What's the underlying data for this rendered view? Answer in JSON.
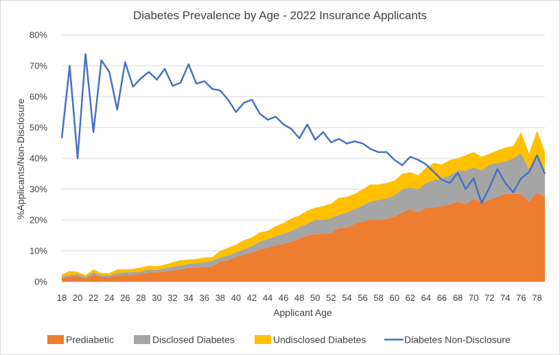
{
  "chart_data": {
    "type": "area",
    "title": "Diabetes Prevalence by Age - 2022 Insurance Applicants",
    "xlabel": "Applicant Age",
    "ylabel": "%Applicants/Non-Disclosure",
    "ylim": [
      0,
      80
    ],
    "y_ticks": [
      "0%",
      "10%",
      "20%",
      "30%",
      "40%",
      "50%",
      "60%",
      "70%",
      "80%"
    ],
    "x_ticks": [
      "18",
      "20",
      "22",
      "24",
      "26",
      "28",
      "30",
      "32",
      "34",
      "36",
      "38",
      "40",
      "42",
      "44",
      "46",
      "48",
      "50",
      "52",
      "54",
      "56",
      "58",
      "60",
      "62",
      "64",
      "66",
      "68",
      "70",
      "72",
      "74",
      "76",
      "78"
    ],
    "x": [
      18,
      19,
      20,
      21,
      22,
      23,
      24,
      25,
      26,
      27,
      28,
      29,
      30,
      31,
      32,
      33,
      34,
      35,
      36,
      37,
      38,
      39,
      40,
      41,
      42,
      43,
      44,
      45,
      46,
      47,
      48,
      49,
      50,
      51,
      52,
      53,
      54,
      55,
      56,
      57,
      58,
      59,
      60,
      61,
      62,
      63,
      64,
      65,
      66,
      67,
      68,
      69,
      70,
      71,
      72,
      73,
      74,
      75,
      76,
      77,
      78,
      79
    ],
    "grid": "horizontal",
    "legend_position": "bottom",
    "series": [
      {
        "name": "Prediabetic",
        "kind": "stacked-area",
        "color": "#ED7D31",
        "values": [
          1.3,
          1.6,
          1.8,
          1.0,
          2.2,
          1.6,
          1.5,
          2.0,
          2.2,
          2.2,
          2.6,
          3.0,
          3.0,
          3.3,
          3.6,
          4.0,
          4.5,
          4.5,
          4.7,
          5.0,
          6.5,
          7.0,
          8.0,
          8.8,
          9.5,
          10.5,
          11.0,
          11.8,
          12.2,
          13.0,
          14.0,
          15.0,
          15.5,
          15.5,
          15.8,
          17.5,
          17.5,
          18.8,
          19.5,
          20.0,
          20.0,
          20.5,
          21.0,
          22.5,
          23.5,
          22.5,
          24.0,
          24.0,
          24.5,
          25.0,
          26.0,
          25.0,
          27.0,
          25.5,
          26.5,
          27.5,
          28.5,
          28.5,
          28.5,
          26.0,
          29.0,
          27.5
        ]
      },
      {
        "name": "Disclosed Diabetes",
        "kind": "stacked-area",
        "color": "#A5A5A5",
        "values": [
          0.3,
          0.6,
          0.7,
          0.5,
          0.8,
          0.5,
          0.5,
          0.8,
          0.8,
          0.9,
          0.8,
          0.9,
          0.8,
          1.0,
          1.2,
          1.2,
          1.3,
          1.5,
          1.6,
          1.8,
          1.3,
          1.5,
          1.5,
          1.7,
          2.0,
          2.5,
          2.8,
          3.0,
          3.3,
          3.5,
          3.7,
          3.8,
          4.5,
          4.5,
          4.8,
          4.2,
          5.0,
          4.7,
          5.2,
          6.0,
          6.5,
          6.5,
          7.0,
          7.5,
          7.0,
          7.5,
          8.0,
          9.0,
          9.0,
          9.5,
          10.0,
          11.0,
          10.0,
          10.5,
          11.5,
          11.0,
          10.5,
          11.5,
          13.0,
          10.5,
          11.5,
          8.5
        ]
      },
      {
        "name": "Undisclosed Diabetes",
        "kind": "stacked-area",
        "color": "#FFC000",
        "values": [
          0.7,
          1.3,
          0.7,
          0.6,
          1.0,
          0.7,
          0.8,
          1.2,
          1.0,
          1.0,
          1.2,
          1.3,
          1.2,
          1.2,
          1.5,
          1.8,
          1.4,
          1.4,
          1.5,
          1.2,
          2.2,
          2.5,
          2.5,
          3.0,
          2.8,
          3.0,
          2.7,
          3.2,
          3.5,
          4.0,
          3.8,
          4.2,
          4.0,
          4.5,
          4.7,
          5.5,
          5.0,
          5.0,
          5.3,
          5.5,
          5.0,
          5.0,
          4.8,
          5.0,
          5.0,
          4.5,
          5.0,
          5.5,
          4.5,
          5.0,
          4.0,
          5.0,
          5.0,
          4.5,
          3.5,
          4.0,
          4.5,
          4.0,
          7.0,
          5.0,
          8.5,
          6.0
        ]
      },
      {
        "name": "Diabetes Non-Disclosure",
        "kind": "line",
        "color": "#4472C4",
        "values": [
          46.5,
          70.0,
          40.0,
          73.8,
          48.5,
          71.8,
          68.0,
          55.8,
          71.2,
          63.2,
          66.0,
          68.0,
          65.5,
          69.0,
          63.5,
          64.5,
          70.5,
          64.2,
          65.0,
          62.5,
          62.0,
          59.0,
          55.0,
          58.0,
          59.0,
          54.5,
          52.5,
          53.5,
          51.0,
          49.5,
          46.5,
          51.0,
          46.0,
          48.5,
          45.2,
          46.3,
          44.8,
          45.5,
          44.8,
          43.0,
          42.0,
          42.0,
          39.5,
          37.8,
          40.5,
          39.5,
          38.0,
          35.5,
          33.0,
          32.0,
          35.3,
          30.0,
          33.5,
          25.5,
          30.5,
          36.5,
          32.0,
          29.0,
          33.5,
          35.5,
          41.0,
          35.0
        ]
      }
    ],
    "legend": [
      {
        "label": "Prediabetic",
        "symbol": "square",
        "color": "#ED7D31"
      },
      {
        "label": "Disclosed Diabetes",
        "symbol": "square",
        "color": "#A5A5A5"
      },
      {
        "label": "Undisclosed Diabetes",
        "symbol": "square",
        "color": "#FFC000"
      },
      {
        "label": "Diabetes Non-Disclosure",
        "symbol": "line",
        "color": "#4472C4"
      }
    ]
  }
}
